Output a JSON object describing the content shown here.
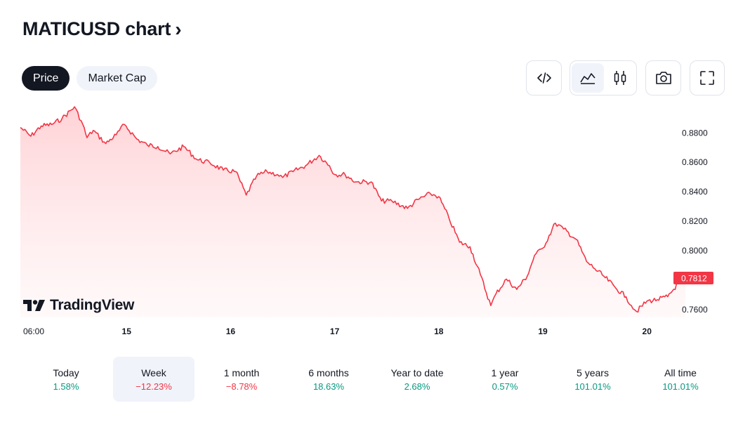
{
  "header": {
    "title": "MATICUSD chart",
    "chevron": "›"
  },
  "tabs": [
    {
      "label": "Price",
      "active": true
    },
    {
      "label": "Market Cap",
      "active": false
    }
  ],
  "toolbar": {
    "icons": [
      "embed-code-icon",
      "area-chart-icon",
      "candlestick-icon",
      "camera-icon",
      "fullscreen-icon"
    ],
    "active": "area-chart-icon"
  },
  "brand": {
    "name": "TradingView"
  },
  "colors": {
    "line": "#f23645",
    "fill_top": "#ffd6d9",
    "positive": "#089981",
    "negative": "#f23645",
    "price_label_bg": "#f23645"
  },
  "chart_data": {
    "type": "area",
    "symbol": "MATICUSD",
    "current_price_label": "0.7812",
    "x_ticks": [
      "06:00",
      "15",
      "16",
      "17",
      "18",
      "19",
      "20"
    ],
    "x_tick_days": [
      14.25,
      15,
      16,
      17,
      18,
      19,
      20
    ],
    "y_ticks": [
      "0.8800",
      "0.8600",
      "0.8400",
      "0.8200",
      "0.8000",
      "0.7812",
      "0.7600"
    ],
    "ylim": [
      0.7545,
      0.8985
    ],
    "x": [
      13.98,
      14.08,
      14.18,
      14.28,
      14.38,
      14.5,
      14.58,
      14.62,
      14.68,
      14.8,
      14.9,
      14.98,
      15.1,
      15.2,
      15.3,
      15.42,
      15.55,
      15.68,
      15.8,
      15.93,
      16.05,
      16.15,
      16.25,
      16.35,
      16.45,
      16.5,
      16.6,
      16.72,
      16.85,
      16.95,
      17.0,
      17.1,
      17.2,
      17.35,
      17.45,
      17.55,
      17.7,
      17.8,
      17.92,
      18.0,
      18.1,
      18.2,
      18.3,
      18.4,
      18.5,
      18.55,
      18.65,
      18.75,
      18.85,
      18.92,
      19.0,
      19.12,
      19.2,
      19.32,
      19.42,
      19.5,
      19.6,
      19.7,
      19.8,
      19.85,
      19.9,
      20.0,
      20.1,
      20.2,
      20.3,
      20.37
    ],
    "y": [
      0.8835,
      0.8775,
      0.8845,
      0.8855,
      0.8895,
      0.8975,
      0.8855,
      0.8765,
      0.8815,
      0.8725,
      0.8785,
      0.8855,
      0.8755,
      0.8715,
      0.8705,
      0.8655,
      0.8705,
      0.8615,
      0.8595,
      0.8545,
      0.8535,
      0.8375,
      0.8505,
      0.8535,
      0.8515,
      0.8495,
      0.8535,
      0.8575,
      0.8645,
      0.8575,
      0.8515,
      0.8515,
      0.8465,
      0.8465,
      0.8335,
      0.8335,
      0.8285,
      0.8345,
      0.8385,
      0.8365,
      0.8215,
      0.8055,
      0.8025,
      0.7835,
      0.7625,
      0.7705,
      0.7805,
      0.7735,
      0.7825,
      0.7965,
      0.8015,
      0.8185,
      0.8145,
      0.8075,
      0.7925,
      0.7875,
      0.7815,
      0.7745,
      0.7685,
      0.7625,
      0.7585,
      0.7655,
      0.7665,
      0.7685,
      0.7775,
      0.7812
    ]
  },
  "periods": [
    {
      "label": "Today",
      "value": "1.58%",
      "sign": "pos",
      "active": false
    },
    {
      "label": "Week",
      "value": "−12.23%",
      "sign": "neg",
      "active": true
    },
    {
      "label": "1 month",
      "value": "−8.78%",
      "sign": "neg",
      "active": false
    },
    {
      "label": "6 months",
      "value": "18.63%",
      "sign": "pos",
      "active": false
    },
    {
      "label": "Year to date",
      "value": "2.68%",
      "sign": "pos",
      "active": false
    },
    {
      "label": "1 year",
      "value": "0.57%",
      "sign": "pos",
      "active": false
    },
    {
      "label": "5 years",
      "value": "101.01%",
      "sign": "pos",
      "active": false
    },
    {
      "label": "All time",
      "value": "101.01%",
      "sign": "pos",
      "active": false
    }
  ]
}
